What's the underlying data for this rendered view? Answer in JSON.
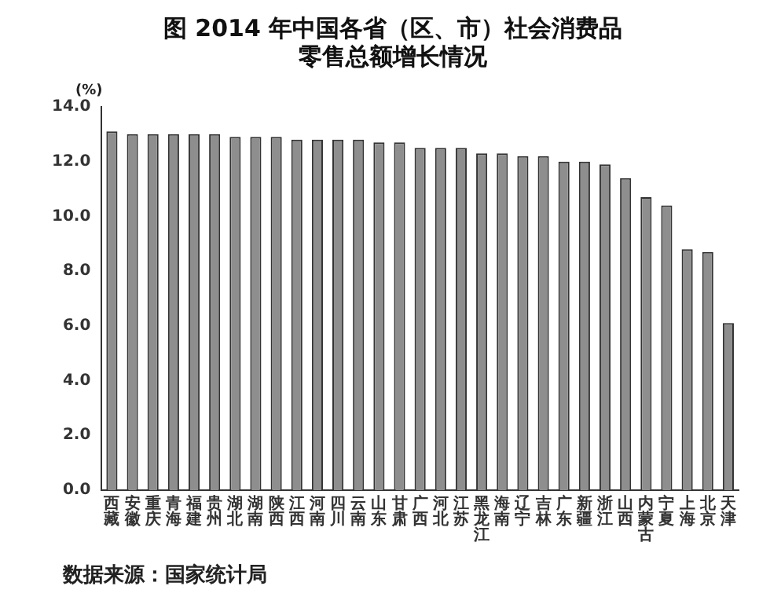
{
  "chart_data": {
    "type": "bar",
    "title": "图 2014 年中国各省（区、市）社会消费品零售总额增长情况",
    "ylabel": "(%)",
    "categories": [
      "西藏",
      "安徽",
      "重庆",
      "青海",
      "福建",
      "贵州",
      "湖北",
      "湖南",
      "陕西",
      "江西",
      "河南",
      "四川",
      "云南",
      "山东",
      "甘肃",
      "广西",
      "河北",
      "江苏",
      "黑龙江",
      "海南",
      "辽宁",
      "吉林",
      "广东",
      "新疆",
      "浙江",
      "山西",
      "内蒙古",
      "宁夏",
      "上海",
      "北京",
      "天津"
    ],
    "values": [
      13.1,
      13.0,
      13.0,
      13.0,
      13.0,
      13.0,
      12.9,
      12.9,
      12.9,
      12.8,
      12.8,
      12.8,
      12.8,
      12.7,
      12.7,
      12.5,
      12.5,
      12.5,
      12.3,
      12.3,
      12.2,
      12.2,
      12.0,
      12.0,
      11.9,
      11.4,
      10.7,
      10.4,
      8.8,
      8.7,
      6.1
    ],
    "color": "#8e8e8e",
    "ylim": [
      0,
      14
    ],
    "yticks": [
      {
        "value": 0,
        "label": "0.0"
      },
      {
        "value": 2,
        "label": "2.0"
      },
      {
        "value": 4,
        "label": "4.0"
      },
      {
        "value": 6,
        "label": "6.0"
      },
      {
        "value": 8,
        "label": "8.0"
      },
      {
        "value": 10,
        "label": "10.0"
      },
      {
        "value": 12,
        "label": "12.0"
      },
      {
        "value": 14,
        "label": "14.0"
      }
    ],
    "grid": false,
    "legend": false,
    "annotations": [
      "数据来源：国家统计局"
    ]
  }
}
